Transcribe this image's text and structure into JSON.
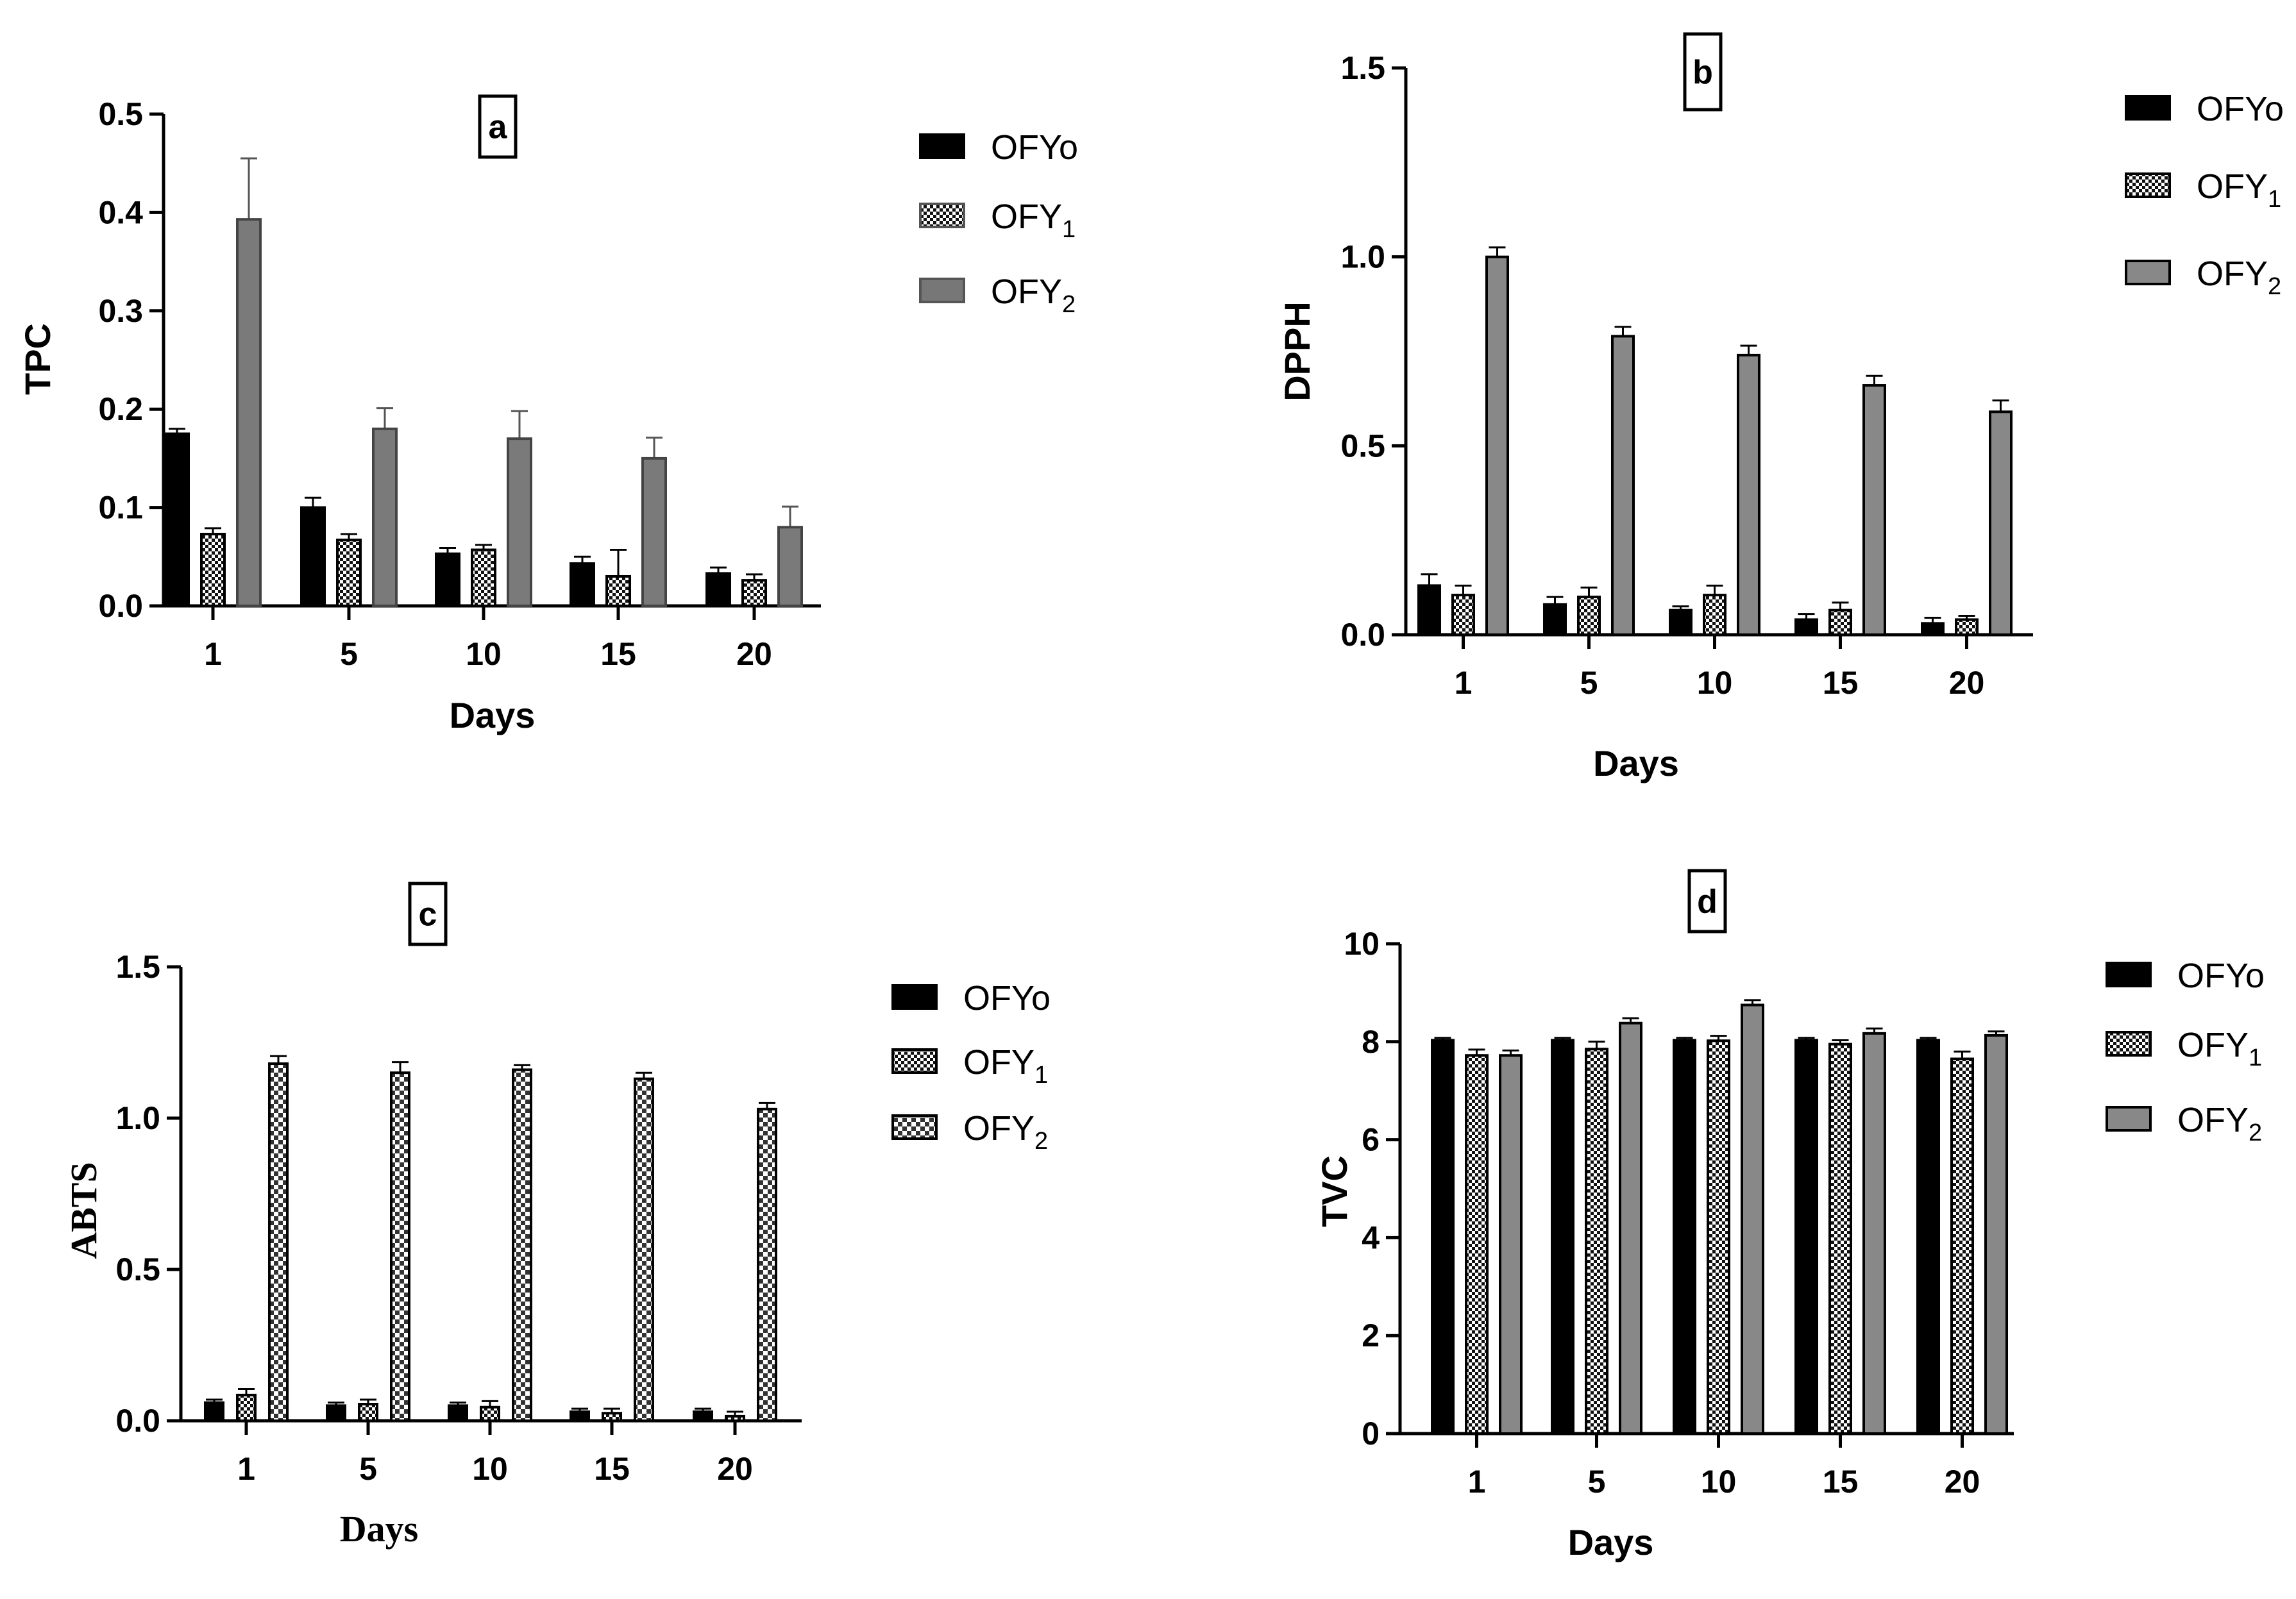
{
  "figure": {
    "panel_count": 4
  },
  "chart_data": [
    {
      "type": "bar",
      "panel_label": "a",
      "xlabel": "Days",
      "ylabel": "TPC",
      "categories": [
        "1",
        "5",
        "10",
        "15",
        "20"
      ],
      "ylim": [
        0,
        0.5
      ],
      "yticks": [
        "0.0",
        "0.1",
        "0.2",
        "0.3",
        "0.4",
        "0.5"
      ],
      "series": [
        {
          "name": "OFYo",
          "legend_main": "OFYo",
          "legend_sub": "",
          "values": [
            0.175,
            0.1,
            0.053,
            0.043,
            0.033
          ],
          "errors": [
            0.005,
            0.01,
            0.006,
            0.007,
            0.006
          ]
        },
        {
          "name": "OFY1",
          "legend_main": "OFY",
          "legend_sub": "1",
          "values": [
            0.073,
            0.067,
            0.057,
            0.03,
            0.026
          ],
          "errors": [
            0.006,
            0.006,
            0.005,
            0.027,
            0.006
          ]
        },
        {
          "name": "OFY2",
          "legend_main": "OFY",
          "legend_sub": "2",
          "values": [
            0.393,
            0.18,
            0.17,
            0.15,
            0.08
          ],
          "errors": [
            0.062,
            0.021,
            0.028,
            0.021,
            0.021
          ]
        }
      ]
    },
    {
      "type": "bar",
      "panel_label": "b",
      "xlabel": "Days",
      "ylabel": "DPPH",
      "categories": [
        "1",
        "5",
        "10",
        "15",
        "20"
      ],
      "ylim": [
        0,
        1.5
      ],
      "yticks": [
        "0.0",
        "0.5",
        "1.0",
        "1.5"
      ],
      "series": [
        {
          "name": "OFYo",
          "legend_main": "OFYo",
          "legend_sub": "",
          "values": [
            0.13,
            0.08,
            0.065,
            0.04,
            0.03
          ],
          "errors": [
            0.03,
            0.02,
            0.01,
            0.015,
            0.015
          ]
        },
        {
          "name": "OFY1",
          "legend_main": "OFY",
          "legend_sub": "1",
          "values": [
            0.105,
            0.1,
            0.105,
            0.065,
            0.04
          ],
          "errors": [
            0.025,
            0.025,
            0.025,
            0.02,
            0.01
          ]
        },
        {
          "name": "OFY2",
          "legend_main": "OFY",
          "legend_sub": "2",
          "values": [
            1.0,
            0.79,
            0.74,
            0.66,
            0.59
          ],
          "errors": [
            0.025,
            0.025,
            0.025,
            0.025,
            0.03
          ]
        }
      ]
    },
    {
      "type": "bar",
      "panel_label": "c",
      "xlabel": "Days",
      "ylabel": "ABTS",
      "categories": [
        "1",
        "5",
        "10",
        "15",
        "20"
      ],
      "ylim": [
        0,
        1.5
      ],
      "yticks": [
        "0.0",
        "0.5",
        "1.0",
        "1.5"
      ],
      "series": [
        {
          "name": "OFYo",
          "legend_main": "OFYo",
          "legend_sub": "",
          "values": [
            0.06,
            0.05,
            0.05,
            0.03,
            0.03
          ],
          "errors": [
            0.01,
            0.01,
            0.01,
            0.01,
            0.01
          ]
        },
        {
          "name": "OFY1",
          "legend_main": "OFY",
          "legend_sub": "1",
          "values": [
            0.085,
            0.055,
            0.045,
            0.025,
            0.015
          ],
          "errors": [
            0.02,
            0.015,
            0.02,
            0.015,
            0.015
          ]
        },
        {
          "name": "OFY2",
          "legend_main": "OFY",
          "legend_sub": "2",
          "values": [
            1.18,
            1.15,
            1.16,
            1.13,
            1.03
          ],
          "errors": [
            0.025,
            0.035,
            0.015,
            0.02,
            0.02
          ]
        }
      ]
    },
    {
      "type": "bar",
      "panel_label": "d",
      "xlabel": "Days",
      "ylabel": "TVC",
      "categories": [
        "1",
        "5",
        "10",
        "15",
        "20"
      ],
      "ylim": [
        0,
        10
      ],
      "yticks": [
        "0",
        "2",
        "4",
        "6",
        "8",
        "10"
      ],
      "series": [
        {
          "name": "OFYo",
          "legend_main": "OFYo",
          "legend_sub": "",
          "values": [
            8.03,
            8.03,
            8.03,
            8.03,
            8.03
          ],
          "errors": [
            0.05,
            0.05,
            0.05,
            0.05,
            0.05
          ]
        },
        {
          "name": "OFY1",
          "legend_main": "OFY",
          "legend_sub": "1",
          "values": [
            7.72,
            7.85,
            8.02,
            7.95,
            7.65
          ],
          "errors": [
            0.12,
            0.15,
            0.1,
            0.08,
            0.15
          ]
        },
        {
          "name": "OFY2",
          "legend_main": "OFY",
          "legend_sub": "2",
          "values": [
            7.72,
            8.38,
            8.75,
            8.17,
            8.13
          ],
          "errors": [
            0.1,
            0.1,
            0.1,
            0.1,
            0.08
          ]
        }
      ]
    }
  ]
}
